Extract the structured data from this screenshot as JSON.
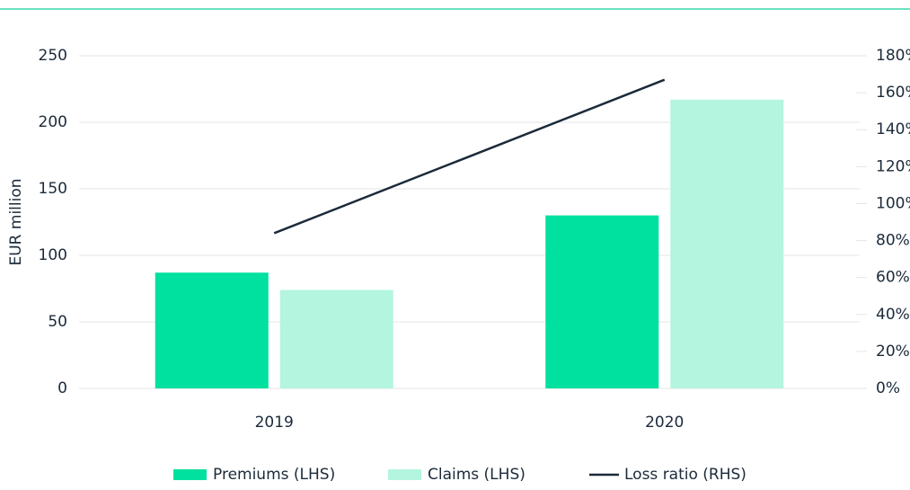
{
  "chart_data": {
    "type": "bar",
    "y_label": "EUR million",
    "categories": [
      "2019",
      "2020"
    ],
    "series": [
      {
        "name": "Premiums (LHS)",
        "color": "#00e09e",
        "values": [
          87,
          130
        ]
      },
      {
        "name": "Claims (LHS)",
        "color": "#b3f5df",
        "values": [
          74,
          217
        ]
      },
      {
        "name": "Loss ratio (RHS)",
        "color": "#1b2a3a",
        "type": "line",
        "axis": "y2",
        "values": [
          84,
          167
        ]
      }
    ],
    "ylim": [
      0,
      250
    ],
    "yticks": [
      0,
      50,
      100,
      150,
      200,
      250
    ],
    "y2lim": [
      0,
      180
    ],
    "y2ticks": [
      {
        "value": 0,
        "label": "0%"
      },
      {
        "value": 20,
        "label": "20%"
      },
      {
        "value": 40,
        "label": "40%"
      },
      {
        "value": 60,
        "label": "60%"
      },
      {
        "value": 80,
        "label": "80%"
      },
      {
        "value": 100,
        "label": "100%"
      },
      {
        "value": 120,
        "label": "120%"
      },
      {
        "value": 140,
        "label": "140%"
      },
      {
        "value": 160,
        "label": "160%"
      },
      {
        "value": 180,
        "label": "180%"
      }
    ],
    "grid": true,
    "legend": "bottom"
  }
}
